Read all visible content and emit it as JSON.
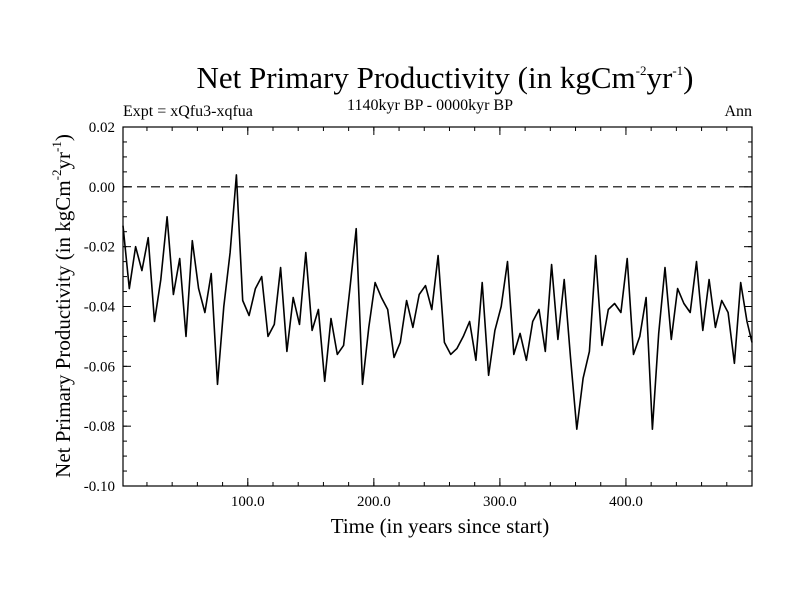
{
  "chart_data": {
    "type": "line",
    "title": "Net Primary Productivity (in kgCm",
    "title_sup1": "-2",
    "title_mid": "yr",
    "title_sup2": "-1",
    "title_end": ")",
    "subtitle_left": "Expt = xQfu3-xqfua",
    "subtitle_center": "1140kyr BP - 0000kyr BP",
    "subtitle_right": "Ann",
    "xlabel": "Time (in years since start)",
    "ylabel": "Net Primary Productivity (in kgCm",
    "ylabel_sup1": "-2",
    "ylabel_mid": "yr",
    "ylabel_sup2": "-1",
    "ylabel_end": ")",
    "xlim": [
      1,
      500
    ],
    "ylim": [
      -0.1,
      0.02
    ],
    "x_ticks": [
      100,
      200,
      300,
      400
    ],
    "x_tick_labels": [
      "100.0",
      "200.0",
      "300.0",
      "400.0"
    ],
    "y_ticks": [
      0.02,
      0.0,
      -0.02,
      -0.04,
      -0.06,
      -0.08,
      -0.1
    ],
    "y_tick_labels": [
      "0.02",
      "0.00",
      "-0.02",
      "-0.04",
      "-0.06",
      "-0.08",
      "-0.10"
    ],
    "reference_line": {
      "y": 0.0,
      "style": "dashed"
    },
    "series": [
      {
        "name": "Net Primary Productivity",
        "x_start": 1,
        "x_step": 5,
        "values": [
          -0.013,
          -0.034,
          -0.02,
          -0.028,
          -0.017,
          -0.045,
          -0.031,
          -0.01,
          -0.036,
          -0.024,
          -0.05,
          -0.018,
          -0.034,
          -0.042,
          -0.029,
          -0.066,
          -0.04,
          -0.022,
          0.004,
          -0.038,
          -0.043,
          -0.034,
          -0.03,
          -0.05,
          -0.046,
          -0.027,
          -0.055,
          -0.037,
          -0.046,
          -0.022,
          -0.048,
          -0.041,
          -0.065,
          -0.044,
          -0.056,
          -0.053,
          -0.034,
          -0.014,
          -0.066,
          -0.047,
          -0.032,
          -0.037,
          -0.041,
          -0.057,
          -0.052,
          -0.038,
          -0.047,
          -0.036,
          -0.033,
          -0.041,
          -0.023,
          -0.052,
          -0.056,
          -0.054,
          -0.05,
          -0.045,
          -0.058,
          -0.032,
          -0.063,
          -0.048,
          -0.04,
          -0.025,
          -0.056,
          -0.049,
          -0.058,
          -0.045,
          -0.041,
          -0.055,
          -0.026,
          -0.051,
          -0.031,
          -0.057,
          -0.081,
          -0.064,
          -0.055,
          -0.023,
          -0.053,
          -0.041,
          -0.039,
          -0.042,
          -0.024,
          -0.056,
          -0.05,
          -0.037,
          -0.081,
          -0.049,
          -0.027,
          -0.051,
          -0.034,
          -0.039,
          -0.042,
          -0.025,
          -0.048,
          -0.031,
          -0.047,
          -0.038,
          -0.042,
          -0.059,
          -0.032,
          -0.045,
          -0.052
        ]
      }
    ]
  }
}
